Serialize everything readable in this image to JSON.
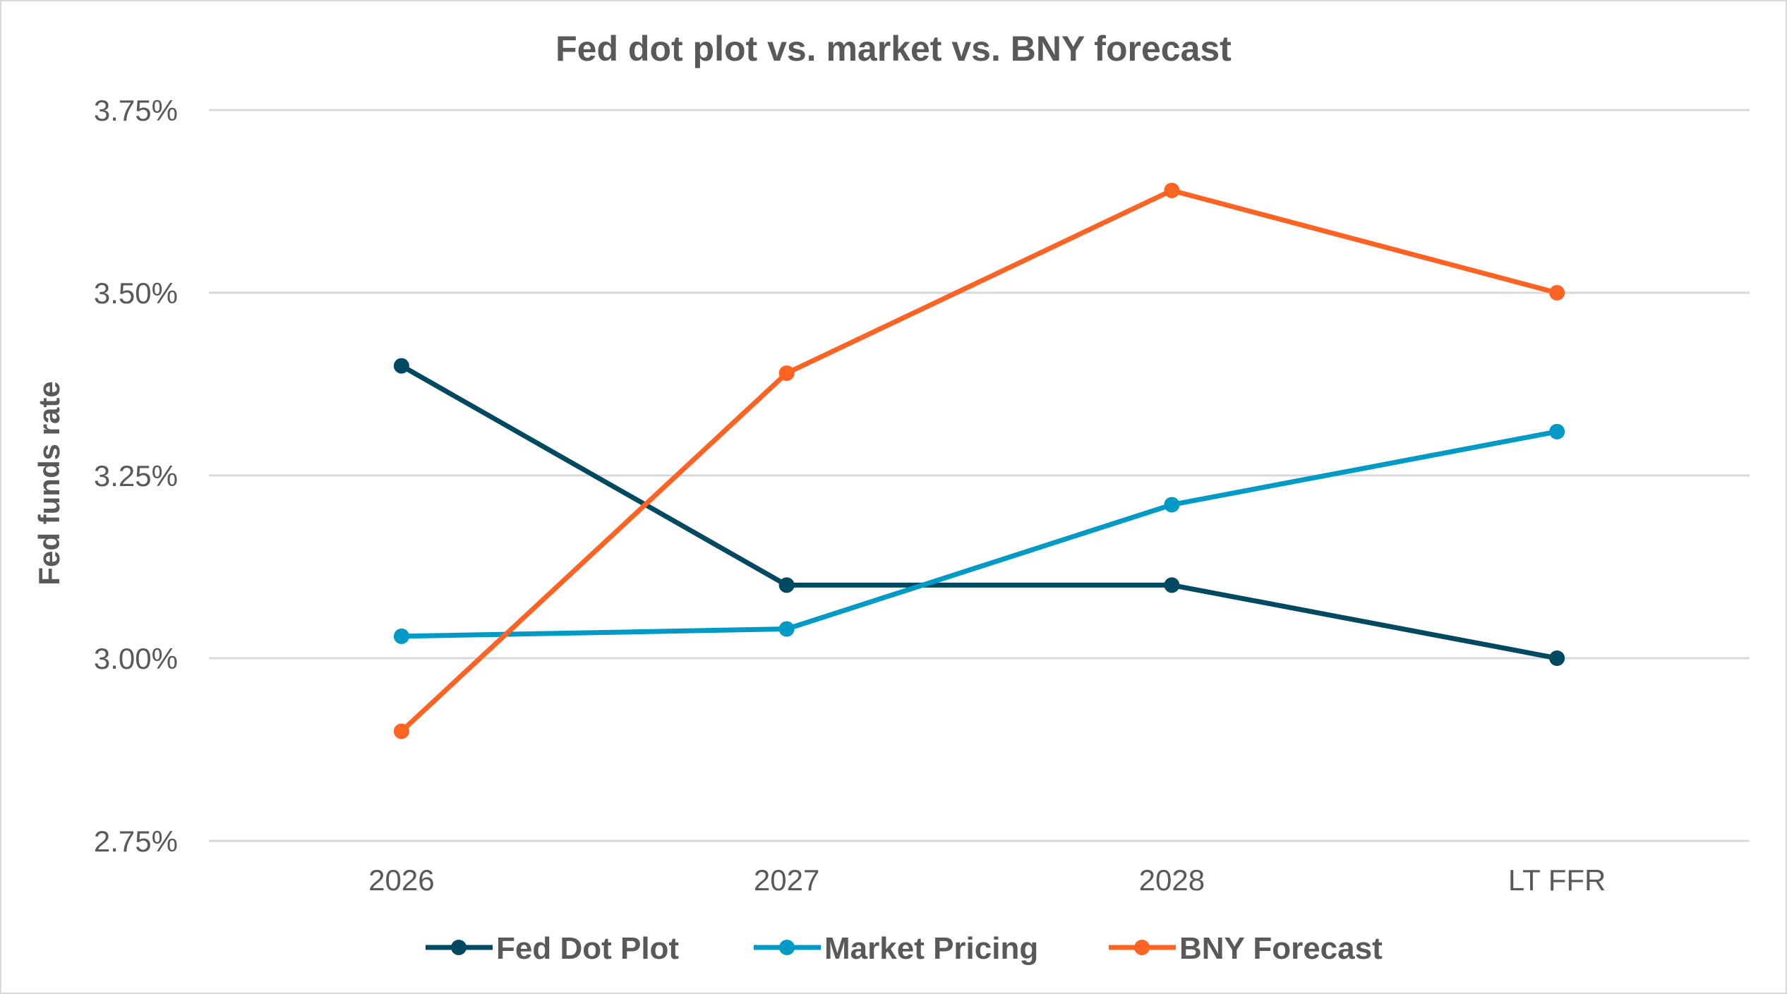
{
  "chart_data": {
    "type": "line",
    "title": "Fed dot plot vs. market vs. BNY forecast",
    "xlabel": "",
    "ylabel": "Fed funds rate",
    "categories": [
      "2026",
      "2027",
      "2028",
      "LT FFR"
    ],
    "ylim": [
      2.75,
      3.75
    ],
    "yticks": [
      2.75,
      3.0,
      3.25,
      3.5,
      3.75
    ],
    "ytick_labels": [
      "2.75%",
      "3.00%",
      "3.25%",
      "3.50%",
      "3.75%"
    ],
    "grid": true,
    "legend_position": "bottom",
    "series": [
      {
        "name": "Fed Dot Plot",
        "color": "#004960",
        "values": [
          3.4,
          3.1,
          3.1,
          3.0
        ]
      },
      {
        "name": "Market Pricing",
        "color": "#009AC7",
        "values": [
          3.03,
          3.04,
          3.21,
          3.31
        ]
      },
      {
        "name": "BNY Forecast",
        "color": "#FF6324",
        "values": [
          2.9,
          3.39,
          3.64,
          3.5
        ]
      }
    ]
  }
}
